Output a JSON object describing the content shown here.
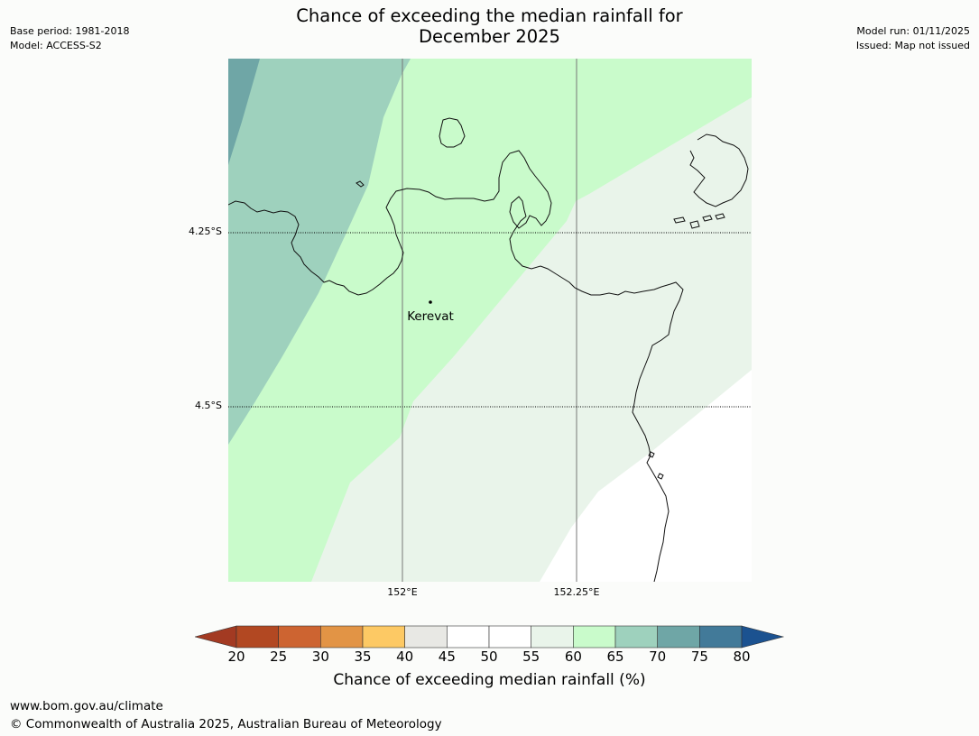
{
  "header": {
    "base_period": "Base period: 1981-2018",
    "model": "Model: ACCESS-S2",
    "model_run": "Model run: 01/11/2025",
    "issued": "Issued: Map not issued",
    "title_line1": "Chance of exceeding the median rainfall for",
    "title_line2": "December 2025"
  },
  "map": {
    "place": "Kerevat",
    "lat_labels": [
      "4.25°S",
      "4.5°S"
    ],
    "lon_labels": [
      "152°E",
      "152.25°E"
    ],
    "colors": {
      "c55_60": "#e9f4ea",
      "c60_65": "#c9fbcb",
      "c65_70": "#9ed1bd",
      "c70_75": "#6fa6a6",
      "ocean": "#ffffff"
    }
  },
  "legend": {
    "ticks": [
      "20",
      "25",
      "30",
      "35",
      "40",
      "45",
      "50",
      "55",
      "60",
      "65",
      "70",
      "75",
      "80"
    ],
    "colors": [
      "#a33a22",
      "#b24822",
      "#cd6431",
      "#e29445",
      "#fdc964",
      "#e8e8e4",
      "#ffffff",
      "#ffffff",
      "#e9f4ea",
      "#c9fbcb",
      "#9ed1bd",
      "#6fa6a6",
      "#427a99",
      "#1b5290"
    ],
    "label": "Chance of exceeding median rainfall (%)"
  },
  "footer": {
    "website": "www.bom.gov.au/climate",
    "copyright": "© Commonwealth of Australia 2025, Australian Bureau of Meteorology"
  }
}
